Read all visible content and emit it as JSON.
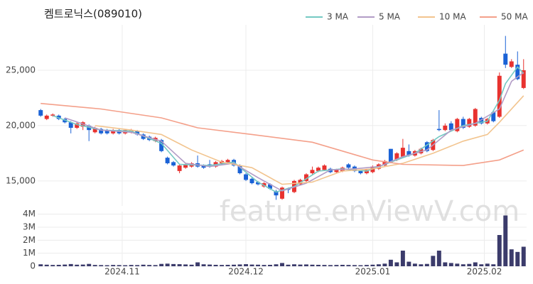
{
  "chart_data": {
    "type": "candlestick",
    "title": "켐트로닉스(089010)",
    "watermark": "feature.enViewV.com",
    "up_color": "#e8322f",
    "down_color": "#1a62d6",
    "volume_color": "#3b3b6b",
    "xlim": [
      -0.5,
      80.5
    ],
    "xticks": [
      {
        "value": 13.5,
        "label": "2024.11"
      },
      {
        "value": 34,
        "label": "2024.12"
      },
      {
        "value": 55,
        "label": "2025.01"
      },
      {
        "value": 73.5,
        "label": "2025.02"
      }
    ],
    "ylim": [
      12750,
      29100
    ],
    "yticks": [
      {
        "value": 15000,
        "label": "15,000"
      },
      {
        "value": 20000,
        "label": "20,000"
      },
      {
        "value": 25000,
        "label": "25,000"
      }
    ],
    "volume_ylim": [
      0,
      4200000
    ],
    "volume_ticks": [
      {
        "value": 0,
        "label": "0"
      },
      {
        "value": 1000000,
        "label": "1M"
      },
      {
        "value": 2000000,
        "label": "2M"
      },
      {
        "value": 3000000,
        "label": "3M"
      },
      {
        "value": 4000000,
        "label": "4M"
      }
    ],
    "grid": true,
    "open": [
      21400,
      20600,
      20900,
      20900,
      20600,
      20300,
      19800,
      19900,
      20000,
      19400,
      19700,
      19600,
      19300,
      19600,
      19300,
      19400,
      19500,
      19200,
      19000,
      18600,
      18700,
      17100,
      16700,
      15900,
      16200,
      16300,
      16600,
      16400,
      16500,
      16300,
      16600,
      16700,
      16900,
      16400,
      15600,
      15200,
      14900,
      14500,
      14700,
      14100,
      13400,
      14300,
      14000,
      14700,
      15000,
      15700,
      15900,
      16000,
      16100,
      15800,
      15900,
      16500,
      16300,
      15900,
      15700,
      15800,
      16100,
      16400,
      17900,
      16900,
      17200,
      17700,
      17300,
      17500,
      18500,
      17800,
      19700,
      19600,
      20200,
      19500,
      20600,
      19900,
      20000,
      20700,
      20200,
      21200,
      20800,
      26500,
      25300,
      25500,
      23400
    ],
    "high": [
      21500,
      21000,
      21100,
      21000,
      20700,
      20400,
      20300,
      20400,
      20100,
      19900,
      19800,
      19700,
      19700,
      19700,
      19700,
      19700,
      19600,
      19300,
      19100,
      19000,
      18800,
      17200,
      16800,
      16500,
      16600,
      16700,
      17300,
      16500,
      16900,
      16800,
      16900,
      17000,
      17000,
      16500,
      15700,
      15300,
      15000,
      14900,
      14800,
      14200,
      14500,
      14400,
      15100,
      15200,
      15700,
      16300,
      16300,
      16500,
      16200,
      16100,
      16300,
      16600,
      16400,
      16000,
      16100,
      16400,
      16600,
      16900,
      17900,
      17600,
      18800,
      18300,
      17800,
      18000,
      18600,
      18800,
      21400,
      20200,
      20400,
      20700,
      20800,
      20700,
      21600,
      20800,
      20700,
      21300,
      24800,
      28100,
      26000,
      26700,
      26000
    ],
    "low": [
      20800,
      20500,
      20800,
      20500,
      20200,
      19300,
      19700,
      19600,
      18600,
      19300,
      19200,
      19200,
      19200,
      19200,
      19200,
      19300,
      19100,
      18700,
      18600,
      18500,
      17600,
      16500,
      16300,
      15700,
      16100,
      16200,
      16200,
      16100,
      16200,
      16200,
      16500,
      16600,
      16300,
      15600,
      15000,
      14700,
      14600,
      14400,
      14200,
      13300,
      13300,
      13900,
      13900,
      14600,
      14900,
      15600,
      15800,
      15900,
      15700,
      15700,
      15800,
      16100,
      15800,
      15600,
      15600,
      15700,
      16000,
      16300,
      16600,
      16800,
      17100,
      17200,
      17200,
      17400,
      17600,
      17700,
      19500,
      19500,
      19500,
      19400,
      19700,
      19800,
      19900,
      20100,
      20100,
      20300,
      20700,
      25200,
      25200,
      24100,
      23300
    ],
    "close": [
      20900,
      20900,
      21000,
      20600,
      20300,
      19800,
      20200,
      20300,
      19600,
      19800,
      19300,
      19300,
      19600,
      19300,
      19600,
      19600,
      19200,
      18800,
      18700,
      18900,
      17700,
      16600,
      16400,
      16400,
      16500,
      16600,
      16300,
      16200,
      16300,
      16700,
      16800,
      16900,
      16400,
      15700,
      15100,
      14800,
      14700,
      14800,
      14300,
      13700,
      14400,
      14200,
      15000,
      15100,
      15600,
      16000,
      16200,
      16400,
      15800,
      16000,
      16200,
      16200,
      15900,
      15700,
      16000,
      16300,
      16500,
      16800,
      16700,
      17500,
      18000,
      17300,
      17700,
      17900,
      17700,
      18700,
      19600,
      20000,
      19600,
      20600,
      19800,
      20600,
      21500,
      20200,
      20600,
      20400,
      24500,
      25500,
      25800,
      24200,
      25000
    ],
    "volume": [
      150000,
      120000,
      100000,
      110000,
      130000,
      170000,
      120000,
      130000,
      180000,
      100000,
      90000,
      80000,
      100000,
      90000,
      80000,
      100000,
      90000,
      120000,
      100000,
      90000,
      180000,
      200000,
      170000,
      160000,
      140000,
      120000,
      300000,
      150000,
      130000,
      110000,
      100000,
      110000,
      120000,
      140000,
      160000,
      130000,
      120000,
      100000,
      110000,
      150000,
      250000,
      120000,
      150000,
      130000,
      140000,
      120000,
      110000,
      100000,
      90000,
      100000,
      110000,
      100000,
      90000,
      80000,
      100000,
      120000,
      150000,
      200000,
      500000,
      300000,
      1200000,
      350000,
      200000,
      150000,
      180000,
      800000,
      1200000,
      300000,
      250000,
      200000,
      150000,
      180000,
      300000,
      150000,
      200000,
      150000,
      2400000,
      3900000,
      1300000,
      1100000,
      1500000
    ],
    "series": [
      {
        "name": "3 MA",
        "color": "#74c9c3",
        "x": [
          2,
          6,
          10,
          15,
          20,
          23,
          28,
          32,
          36,
          39,
          42,
          46,
          50,
          54,
          58,
          62,
          66,
          70,
          74,
          76,
          77,
          79,
          80
        ],
        "values": [
          20900,
          20100,
          19600,
          19500,
          18400,
          16500,
          16400,
          16700,
          14900,
          14000,
          14500,
          15900,
          16100,
          15900,
          16700,
          17500,
          19000,
          20000,
          20400,
          22300,
          23800,
          25300,
          24700
        ]
      },
      {
        "name": "5 MA",
        "color": "#b29cc6",
        "x": [
          4,
          10,
          15,
          20,
          24,
          28,
          32,
          36,
          40,
          44,
          48,
          52,
          56,
          60,
          64,
          68,
          72,
          76,
          78,
          80
        ],
        "values": [
          20700,
          19600,
          19400,
          18600,
          16600,
          16300,
          16600,
          15300,
          14100,
          14800,
          16000,
          16100,
          16300,
          17200,
          17800,
          19600,
          20200,
          21500,
          24000,
          24800
        ]
      },
      {
        "name": "10 MA",
        "color": "#f2c48e",
        "x": [
          9,
          15,
          20,
          25,
          30,
          35,
          40,
          45,
          50,
          55,
          60,
          65,
          70,
          74,
          76,
          80
        ],
        "values": [
          20000,
          19600,
          19200,
          17800,
          16700,
          16200,
          14700,
          14900,
          15900,
          16100,
          16600,
          17500,
          18600,
          19200,
          20300,
          22700
        ]
      },
      {
        "name": "50 MA",
        "color": "#f4a08a",
        "x": [
          0,
          10,
          20,
          26,
          35,
          45,
          55,
          60,
          70,
          76,
          80
        ],
        "values": [
          22000,
          21500,
          20700,
          19800,
          19200,
          18500,
          16900,
          16500,
          16400,
          16900,
          17800
        ]
      }
    ]
  }
}
